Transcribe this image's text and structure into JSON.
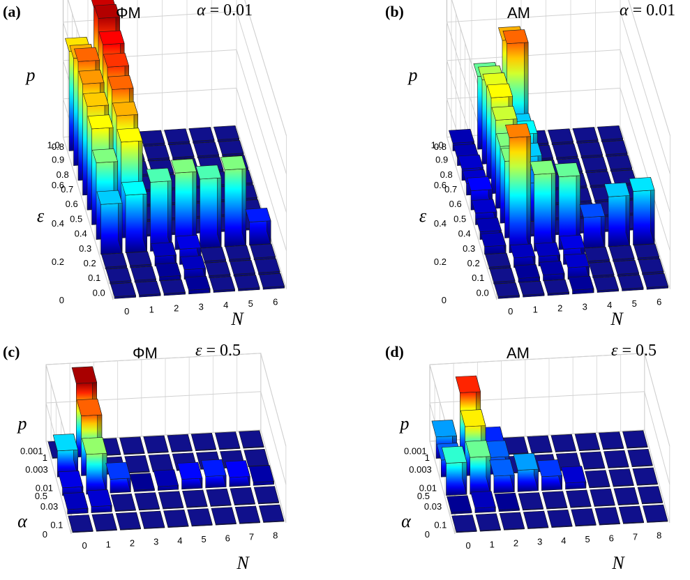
{
  "chart_data": [
    {
      "id": "a",
      "type": "bar3d",
      "panel_label": "(a)",
      "title": "ΦM",
      "param_symbol": "α",
      "param_value": "0.01",
      "zlabel": "p",
      "ylabel": "ε",
      "xlabel": "N",
      "z_ticks": [
        "0",
        "0.2",
        "0.4",
        "0.6",
        "0.8"
      ],
      "zlim": [
        0,
        0.8
      ],
      "y_ticks": [
        "0.0",
        "0.1",
        "0.2",
        "0.3",
        "0.4",
        "0.5",
        "0.6",
        "0.7",
        "0.8",
        "0.9",
        "1.0"
      ],
      "x_ticks": [
        "0",
        "1",
        "2",
        "3",
        "4",
        "5",
        "6"
      ],
      "values": [
        [
          0.01,
          0.01,
          0.01,
          0.02,
          0.01,
          0.01,
          0.01
        ],
        [
          0.01,
          0.01,
          0.02,
          0.05,
          0.01,
          0.01,
          0.01
        ],
        [
          0.01,
          0.01,
          0.05,
          0.08,
          0.01,
          0.01,
          0.01
        ],
        [
          0.26,
          0.3,
          0.36,
          0.4,
          0.36,
          0.4,
          0.12
        ],
        [
          0.4,
          0.5,
          0.01,
          0.01,
          0.01,
          0.01,
          0.01
        ],
        [
          0.5,
          0.56,
          0.01,
          0.01,
          0.01,
          0.01,
          0.01
        ],
        [
          0.54,
          0.62,
          0.01,
          0.01,
          0.01,
          0.01,
          0.01
        ],
        [
          0.58,
          0.66,
          0.01,
          0.01,
          0.01,
          0.01,
          0.01
        ],
        [
          0.62,
          0.7,
          0.01,
          0.01,
          0.01,
          0.01,
          0.01
        ],
        [
          0.56,
          0.76,
          0.01,
          0.01,
          0.01,
          0.01,
          0.01
        ],
        [
          0.52,
          0.74,
          0.01,
          0.01,
          0.01,
          0.01,
          0.01
        ]
      ]
    },
    {
      "id": "b",
      "type": "bar3d",
      "panel_label": "(b)",
      "title": "AM",
      "param_symbol": "α",
      "param_value": "0.01",
      "zlabel": "p",
      "ylabel": "ε",
      "xlabel": "N",
      "z_ticks": [
        "0",
        "0.2",
        "0.4",
        "0.6",
        "0.8"
      ],
      "zlim": [
        0,
        0.8
      ],
      "y_ticks": [
        "0.0",
        "0.1",
        "0.2",
        "0.3",
        "0.4",
        "0.5",
        "0.6",
        "0.7",
        "0.8",
        "0.9",
        "1.0"
      ],
      "x_ticks": [
        "0",
        "1",
        "2",
        "3",
        "4",
        "5",
        "6"
      ],
      "values": [
        [
          0.01,
          0.01,
          0.01,
          0.02,
          0.01,
          0.01,
          0.01
        ],
        [
          0.01,
          0.02,
          0.03,
          0.06,
          0.01,
          0.01,
          0.01
        ],
        [
          0.01,
          0.05,
          0.05,
          0.08,
          0.01,
          0.01,
          0.01
        ],
        [
          0.04,
          0.6,
          0.4,
          0.38,
          0.16,
          0.26,
          0.28
        ],
        [
          0.04,
          0.4,
          0.01,
          0.01,
          0.01,
          0.01,
          0.01
        ],
        [
          0.06,
          0.4,
          0.2,
          0.01,
          0.01,
          0.01,
          0.01
        ],
        [
          0.1,
          0.46,
          0.26,
          0.01,
          0.01,
          0.01,
          0.01
        ],
        [
          0.06,
          0.5,
          0.3,
          0.01,
          0.01,
          0.01,
          0.01
        ],
        [
          0.06,
          0.48,
          0.26,
          0.01,
          0.01,
          0.01,
          0.01
        ],
        [
          0.04,
          0.44,
          0.62,
          0.01,
          0.01,
          0.01,
          0.01
        ],
        [
          0.04,
          0.38,
          0.56,
          0.01,
          0.01,
          0.01,
          0.01
        ]
      ]
    },
    {
      "id": "c",
      "type": "bar3d",
      "panel_label": "(c)",
      "title": "ΦM",
      "param_symbol": "ε",
      "param_value": "0.5",
      "zlabel": "p",
      "ylabel": "α",
      "xlabel": "N",
      "z_ticks": [
        "0",
        "0.5",
        "1"
      ],
      "zlim": [
        0,
        1
      ],
      "y_ticks": [
        "0.1",
        "0.03",
        "0.01",
        "0.003",
        "0.001"
      ],
      "x_ticks": [
        "0",
        "1",
        "2",
        "3",
        "4",
        "5",
        "6",
        "7",
        "8"
      ],
      "values": [
        [
          0.01,
          0.01,
          0.01,
          0.01,
          0.01,
          0.01,
          0.01,
          0.01,
          0.01
        ],
        [
          0.06,
          0.08,
          0.01,
          0.01,
          0.01,
          0.01,
          0.01,
          0.01,
          0.01
        ],
        [
          0.1,
          0.52,
          0.18,
          0.02,
          0.05,
          0.13,
          0.15,
          0.12,
          0.04
        ],
        [
          0.34,
          0.78,
          0.01,
          0.01,
          0.01,
          0.01,
          0.01,
          0.01,
          0.01
        ],
        [
          0.01,
          0.96,
          0.01,
          0.01,
          0.01,
          0.01,
          0.01,
          0.01,
          0.01
        ]
      ]
    },
    {
      "id": "d",
      "type": "bar3d",
      "panel_label": "(d)",
      "title": "AM",
      "param_symbol": "ε",
      "param_value": "0.5",
      "zlabel": "p",
      "ylabel": "α",
      "xlabel": "N",
      "z_ticks": [
        "0",
        "0.5",
        "1"
      ],
      "zlim": [
        0,
        1
      ],
      "y_ticks": [
        "0.1",
        "0.03",
        "0.01",
        "0.003",
        "0.001"
      ],
      "x_ticks": [
        "0",
        "1",
        "2",
        "3",
        "4",
        "5",
        "6",
        "7",
        "8"
      ],
      "values": [
        [
          0.01,
          0.01,
          0.01,
          0.01,
          0.01,
          0.01,
          0.01,
          0.01,
          0.01
        ],
        [
          0.02,
          0.06,
          0.02,
          0.01,
          0.01,
          0.01,
          0.01,
          0.01,
          0.01
        ],
        [
          0.42,
          0.48,
          0.22,
          0.28,
          0.18,
          0.08,
          0.01,
          0.01,
          0.01
        ],
        [
          0.22,
          0.64,
          0.22,
          0.01,
          0.01,
          0.01,
          0.01,
          0.01,
          0.01
        ],
        [
          0.28,
          0.84,
          0.16,
          0.01,
          0.01,
          0.01,
          0.01,
          0.01,
          0.01
        ]
      ]
    }
  ]
}
